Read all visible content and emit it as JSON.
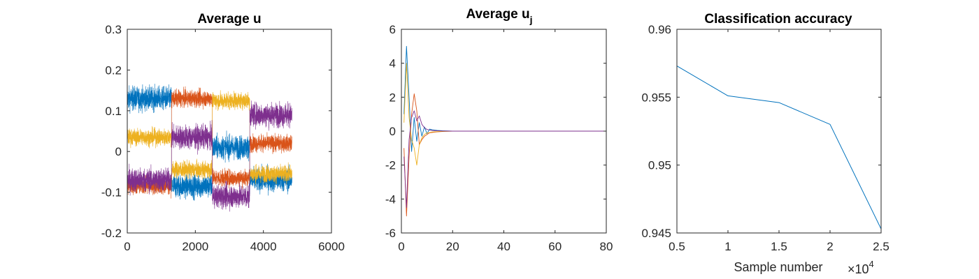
{
  "colors": {
    "blue": "#0072BD",
    "orange": "#D95319",
    "yellow": "#EDB120",
    "purple": "#7E2F8E",
    "axis": "#262626"
  },
  "chart_data": [
    {
      "type": "line",
      "title": "Average u",
      "xlabel": "",
      "ylabel": "",
      "xlim": [
        0,
        6000
      ],
      "ylim": [
        -0.2,
        0.3
      ],
      "xticks": [
        0,
        2000,
        4000,
        6000
      ],
      "xtick_labels": [
        "0",
        "2000",
        "4000",
        "6000"
      ],
      "yticks": [
        -0.2,
        -0.1,
        0,
        0.1,
        0.2,
        0.3
      ],
      "ytick_labels": [
        "-0.2",
        "-0.1",
        "0",
        "0.1",
        "0.2",
        "0.3"
      ],
      "x_end": 4840,
      "segment_bounds": [
        0,
        1300,
        2500,
        3600,
        4840
      ],
      "series": [
        {
          "color": "#0072BD",
          "segment_means": [
            0.13,
            -0.085,
            0.01,
            -0.07
          ],
          "noise": 0.028
        },
        {
          "color": "#D95319",
          "segment_means": [
            -0.085,
            0.13,
            -0.065,
            0.02
          ],
          "noise": 0.02
        },
        {
          "color": "#EDB120",
          "segment_means": [
            0.035,
            -0.045,
            0.125,
            -0.055
          ],
          "noise": 0.02
        },
        {
          "color": "#7E2F8E",
          "segment_means": [
            -0.07,
            0.035,
            -0.11,
            0.09
          ],
          "noise": 0.028
        }
      ]
    },
    {
      "type": "line",
      "title_main": "Average u",
      "title_sub": "j",
      "xlabel": "",
      "ylabel": "",
      "xlim": [
        0,
        80
      ],
      "ylim": [
        -6,
        6
      ],
      "xticks": [
        0,
        20,
        40,
        60,
        80
      ],
      "xtick_labels": [
        "0",
        "20",
        "40",
        "60",
        "80"
      ],
      "yticks": [
        -6,
        -4,
        -2,
        0,
        2,
        4,
        6
      ],
      "ytick_labels": [
        "-6",
        "-4",
        "-2",
        "0",
        "2",
        "4",
        "6"
      ],
      "series": [
        {
          "color": "#0072BD",
          "x": [
            1,
            2,
            3,
            4,
            5,
            6,
            7,
            8,
            9,
            10,
            11,
            12,
            14,
            16,
            20,
            80
          ],
          "y": [
            1.0,
            5.0,
            2.0,
            -1.2,
            0.8,
            -0.6,
            0.5,
            -0.3,
            0.25,
            -0.15,
            0.12,
            0.08,
            0.04,
            0.02,
            0.0,
            0.0
          ]
        },
        {
          "color": "#D95319",
          "x": [
            1,
            2,
            3,
            4,
            5,
            6,
            7,
            8,
            9,
            10,
            11,
            12,
            14,
            16,
            20,
            80
          ],
          "y": [
            -1.0,
            -5.0,
            -1.5,
            1.0,
            2.2,
            1.2,
            -0.8,
            -0.5,
            -0.3,
            -0.2,
            -0.1,
            -0.08,
            -0.04,
            -0.02,
            0.0,
            0.0
          ]
        },
        {
          "color": "#EDB120",
          "x": [
            1,
            2,
            3,
            4,
            5,
            6,
            7,
            8,
            9,
            10,
            11,
            12,
            14,
            16,
            20,
            80
          ],
          "y": [
            0.5,
            4.0,
            0.8,
            -0.5,
            -1.0,
            -2.0,
            -0.8,
            -0.4,
            -0.2,
            -0.1,
            -0.08,
            -0.05,
            -0.03,
            -0.01,
            0.0,
            0.0
          ]
        },
        {
          "color": "#7E2F8E",
          "x": [
            1,
            2,
            3,
            4,
            5,
            6,
            7,
            8,
            9,
            10,
            11,
            12,
            14,
            16,
            20,
            80
          ],
          "y": [
            -1.5,
            -4.5,
            -0.5,
            0.8,
            1.2,
            0.6,
            0.9,
            0.4,
            0.2,
            0.1,
            0.06,
            0.04,
            0.02,
            0.01,
            0.0,
            0.0
          ]
        }
      ]
    },
    {
      "type": "line",
      "title": "Classification accuracy",
      "xlabel": "Sample number",
      "ylabel": "",
      "exponent_label_prefix": "×10",
      "exponent_label_power": "4",
      "xlim": [
        0.5,
        2.5
      ],
      "ylim": [
        0.945,
        0.96
      ],
      "xticks": [
        0.5,
        1,
        1.5,
        2,
        2.5
      ],
      "xtick_labels": [
        "0.5",
        "1",
        "1.5",
        "2",
        "2.5"
      ],
      "yticks": [
        0.945,
        0.95,
        0.955,
        0.96
      ],
      "ytick_labels": [
        "0.945",
        "0.95",
        "0.955",
        "0.96"
      ],
      "series": [
        {
          "color": "#0072BD",
          "x": [
            0.5,
            1,
            1.5,
            2,
            2.5
          ],
          "y": [
            0.9573,
            0.9551,
            0.9546,
            0.953,
            0.9453
          ]
        }
      ]
    }
  ]
}
